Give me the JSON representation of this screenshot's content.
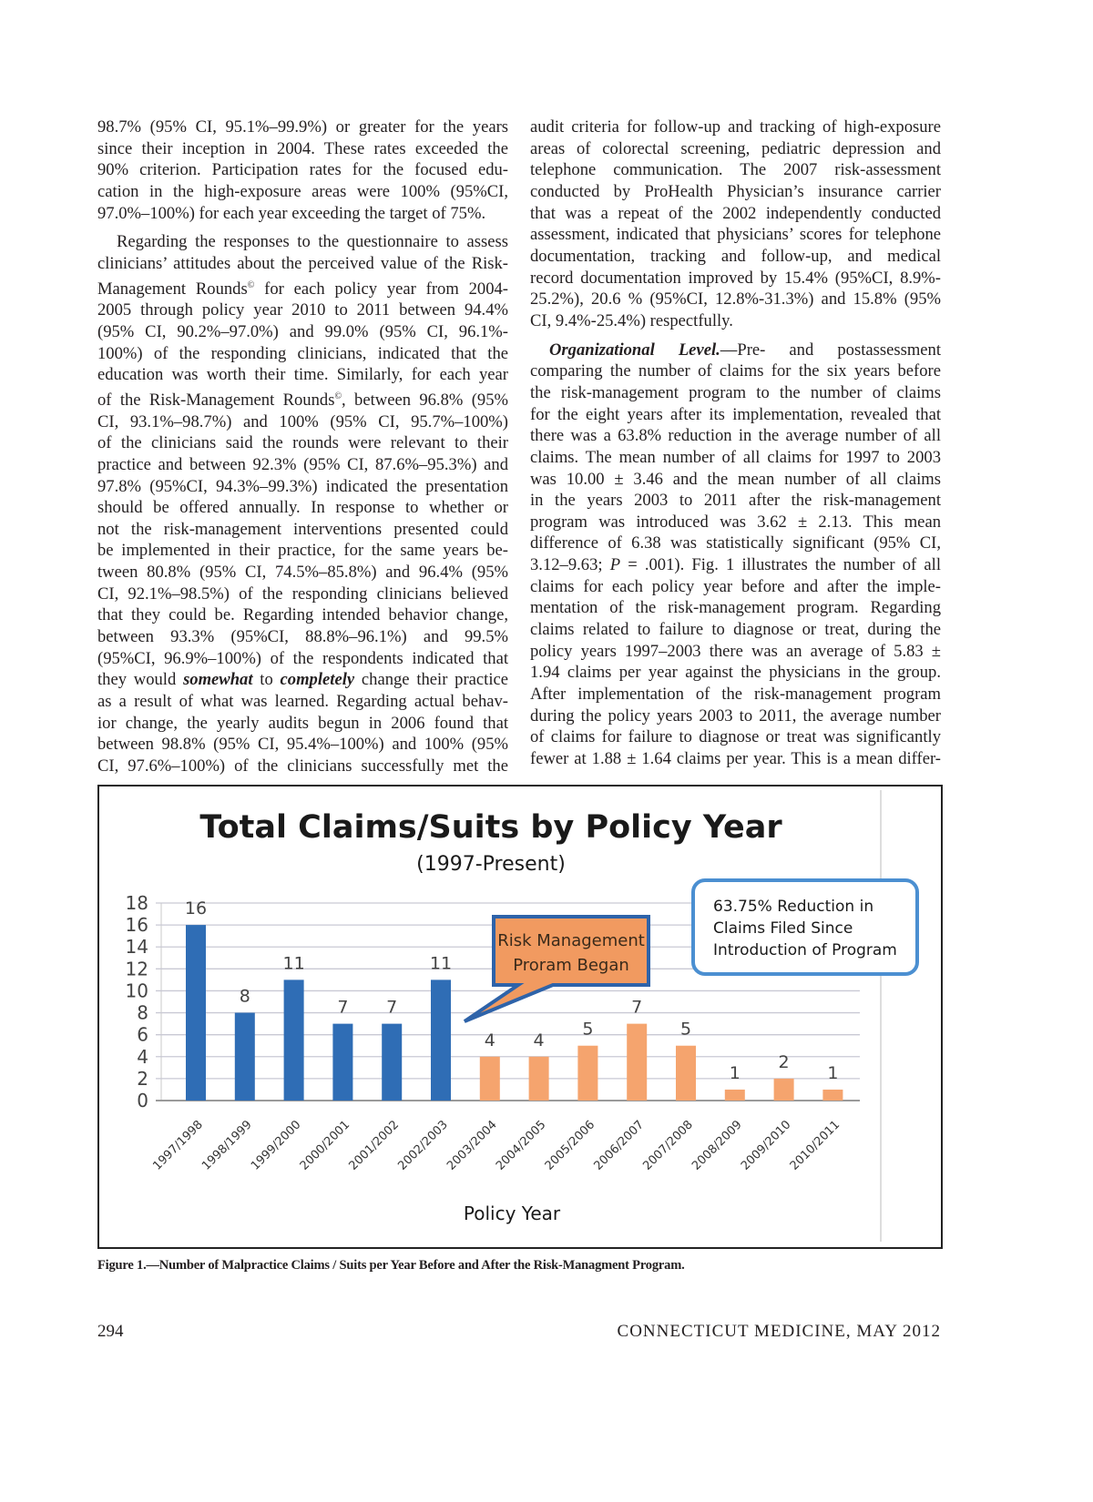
{
  "left_column": {
    "paragraphs": [
      {
        "indent": false,
        "lines": [
          "98.7% (95% CI, 95.1%–99.9%) or greater for the years",
          "since their inception in 2004. These rates exceeded the",
          "90% criterion. Participation rates for the focused edu-",
          "cation in the high-exposure areas were 100% (95%CI,",
          "97.0%–100%) for each year exceeding the target of 75%."
        ]
      },
      {
        "indent": true,
        "lines": [
          "Regarding the responses to the questionnaire to assess",
          "clinicians’ attitudes about the perceived value of the Risk-",
          [
            [
              "Management Rounds",
              ""
            ],
            [
              "©",
              "sup"
            ],
            [
              " for each policy year from 2004-",
              ""
            ]
          ],
          "2005 through policy year 2010 to 2011 between 94.4%",
          "(95% CI, 90.2%–97.0%) and 99.0% (95% CI, 96.1%-",
          "100%) of the responding clinicians, indicated that the",
          "education was worth their time. Similarly, for each year",
          [
            [
              "of the Risk-Management Rounds",
              ""
            ],
            [
              "©",
              "sup"
            ],
            [
              ", between 96.8% (95%",
              ""
            ]
          ],
          "CI, 93.1%–98.7%) and 100% (95% CI, 95.7%–100%)",
          "of the clinicians said the rounds were relevant to their",
          "practice and between 92.3% (95% CI, 87.6%–95.3%) and",
          "97.8% (95%CI, 94.3%–99.3%) indicated the presentation",
          "should be offered annually. In response to whether or",
          "not the risk-management interventions presented could",
          "be implemented in their practice, for the same years be-",
          "tween 80.8% (95% CI, 74.5%–85.8%) and 96.4% (95%",
          "CI, 92.1%–98.5%) of the responding clinicians believed",
          "that they could be. Regarding intended behavior change,",
          "between 93.3% (95%CI, 88.8%–96.1%) and 99.5%",
          "(95%CI, 96.9%–100%) of the respondents indicated that",
          [
            [
              "they would ",
              ""
            ],
            [
              "somewhat",
              "bi"
            ],
            [
              " to ",
              ""
            ],
            [
              "completely",
              "bi"
            ],
            [
              " change their practice",
              ""
            ]
          ],
          "as a result of what was learned. Regarding actual behav-",
          "ior change, the yearly audits begun in 2006 found that",
          "between 98.8% (95% CI, 95.4%–100%) and 100% (95%",
          "CI, 97.6%–100%) of the clinicians successfully met the"
        ],
        "continues": true
      }
    ]
  },
  "right_column": {
    "paragraphs": [
      {
        "indent": false,
        "lines": [
          "audit criteria for follow-up and tracking of high-exposure",
          "areas of colorectal screening, pediatric depression and",
          "telephone communication. The 2007 risk-assessment",
          "conducted by ProHealth Physician’s insurance carrier",
          "that was a repeat of the 2002 independently conducted",
          "assessment, indicated that physicians’ scores for telephone",
          "documentation, tracking and follow-up, and medical",
          "record documentation improved by 15.4% (95%CI, 8.9%-",
          "25.2%), 20.6 % (95%CI, 12.8%-31.3%) and 15.8% (95%",
          "CI, 9.4%-25.4%) respectfully."
        ]
      },
      {
        "indent": true,
        "lines": [
          [
            [
              "Organizational Level.",
              "bi"
            ],
            [
              "—Pre- and postassessment",
              ""
            ]
          ],
          "comparing the number of claims for the six years before",
          "the risk-management program to the number of claims",
          "for the eight years after its implementation, revealed that",
          "there was a 63.8% reduction in the average number of all",
          "claims. The mean number of all claims for 1997 to 2003",
          "was 10.00 ± 3.46 and the mean number of all claims",
          "in the years 2003 to 2011 after the risk-management",
          "program was introduced was 3.62 ± 2.13. This mean",
          "difference of 6.38 was statistically significant (95% CI,",
          [
            [
              "3.12–9.63; ",
              ""
            ],
            [
              "P",
              "it"
            ],
            [
              " = .001). Fig. 1 illustrates the number of all",
              ""
            ]
          ],
          "claims for each policy year before and after the imple-",
          "mentation of the risk-management program. Regarding",
          "claims related to failure to diagnose or treat, during the",
          "policy years 1997–2003 there was an average of 5.83 ±",
          "1.94 claims per year against the physicians in the group.",
          "After implementation of the risk-management program",
          "during the policy years 2003 to 2011, the average number",
          "of claims for failure to diagnose or treat was significantly",
          "fewer at 1.88 ± 1.64 claims per year. This is a mean differ-"
        ],
        "continues": true
      }
    ]
  },
  "chart_data": {
    "type": "bar",
    "title": "Total Claims/Suits by Policy Year",
    "subtitle": "(1997-Present)",
    "xlabel": "Policy Year",
    "ylabel": "",
    "ylim": [
      0,
      18
    ],
    "yticks": [
      0,
      2,
      4,
      6,
      8,
      10,
      12,
      14,
      16,
      18
    ],
    "grid": true,
    "categories": [
      "1997/1998",
      "1998/1999",
      "1999/2000",
      "2000/2001",
      "2001/2002",
      "2002/2003",
      "2003/2004",
      "2004/2005",
      "2005/2006",
      "2006/2007",
      "2007/2008",
      "2008/2009",
      "2009/2010",
      "2010/2011"
    ],
    "values": [
      16,
      8,
      11,
      7,
      7,
      11,
      4,
      4,
      5,
      7,
      5,
      1,
      2,
      1
    ],
    "data_labels": true,
    "bar_colors": {
      "before_program": "#2f6db5",
      "after_program": "#f5a46e"
    },
    "annotations": [
      {
        "text_lines": [
          "Risk Management",
          "Proram Began"
        ],
        "style": "callout",
        "fill": "#f19a60",
        "border": "#2e63a9"
      },
      {
        "text_lines": [
          "63.75% Reduction in",
          "Claims Filed Since",
          "Introduction of Program"
        ],
        "style": "rounded-box",
        "fill": "#ffffff",
        "border": "#4b8fd1"
      }
    ]
  },
  "figure": {
    "caption": "Figure 1.—Number of Malpractice Claims / Suits per Year Before and After the Risk-Managment Program."
  },
  "footer": {
    "page_number": "294",
    "journal": "CONNECTICUT MEDICINE, MAY 2012"
  }
}
